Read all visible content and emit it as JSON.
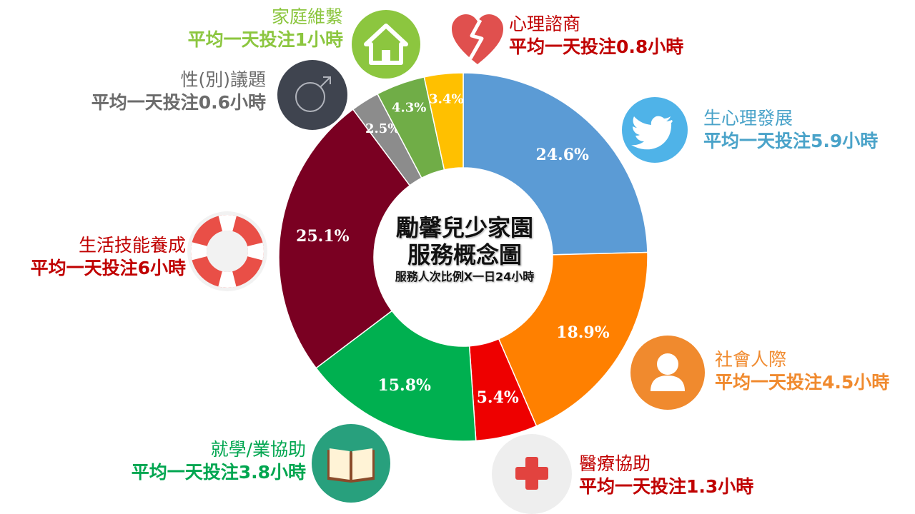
{
  "chart_data": {
    "type": "pie",
    "title": "勵馨兒少家園\n服務概念圖",
    "title_lines": [
      "勵馨兒少家園",
      "服務概念圖"
    ],
    "subtitle": "服務人次比例X一日24小時",
    "slices": [
      {
        "name": "生心理發展",
        "value": 24.6,
        "pct_label": "24.6%",
        "detail": "平均一天投注5.9小時",
        "color": "#5b9bd5",
        "text_color": "#4aa3c9",
        "icon": "twitter-bird-icon"
      },
      {
        "name": "社會人際",
        "value": 18.9,
        "pct_label": "18.9%",
        "detail": "平均一天投注4.5小時",
        "color": "#ff8000",
        "text_color": "#f08a2e",
        "icon": "person-icon"
      },
      {
        "name": "醫療協助",
        "value": 5.4,
        "pct_label": "5.4%",
        "detail": "平均一天投注1.3小時",
        "color": "#ee0000",
        "text_color": "#c00000",
        "icon": "medical-cross-icon"
      },
      {
        "name": "就學/業協助",
        "value": 15.8,
        "pct_label": "15.8%",
        "detail": "平均一天投注3.8小時",
        "color": "#00b050",
        "text_color": "#00a650",
        "icon": "open-book-icon"
      },
      {
        "name": "生活技能養成",
        "value": 25.1,
        "pct_label": "25.1%",
        "detail": "平均一天投注6小時",
        "color": "#7a0022",
        "text_color": "#c00000",
        "icon": "life-ring-icon"
      },
      {
        "name": "性(別)議題",
        "value": 2.5,
        "pct_label": "2.5%",
        "detail": "平均一天投注0.6小時",
        "color": "#8c8c8c",
        "text_color": "#6b6b6b",
        "icon": "male-symbol-icon"
      },
      {
        "name": "家庭維繫",
        "value": 4.3,
        "pct_label": "4.3%",
        "detail": "平均一天投注1小時",
        "color": "#70ad47",
        "text_color": "#8cc63f",
        "icon": "house-icon"
      },
      {
        "name": "心理諮商",
        "value": 3.4,
        "pct_label": "3.4%",
        "detail": "平均一天投注0.8小時",
        "color": "#ffc000",
        "text_color": "#c00000",
        "icon": "broken-heart-icon"
      }
    ]
  }
}
